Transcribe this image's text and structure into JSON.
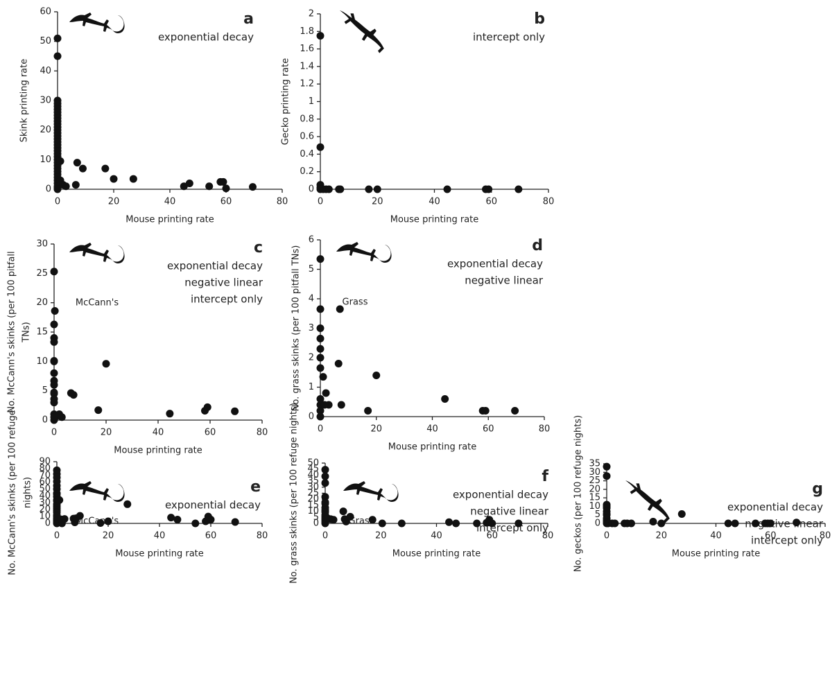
{
  "chart_data": [
    {
      "type": "scatter",
      "panel": "a",
      "annotations": [
        "exponential decay"
      ],
      "xlabel": "Mouse printing rate",
      "ylabel": [
        "Skink printing rate"
      ],
      "xlim": [
        0,
        80
      ],
      "xticks": [
        0,
        20,
        40,
        60,
        80
      ],
      "ylim": [
        0,
        60
      ],
      "yticks": [
        0,
        10,
        20,
        30,
        40,
        50,
        60
      ],
      "color": "#111111",
      "x": [
        0,
        0,
        0,
        0,
        0,
        0,
        0,
        0,
        0,
        0,
        0,
        0,
        0,
        0,
        0,
        0,
        0,
        0,
        0,
        0,
        0,
        0,
        0,
        0,
        0,
        0,
        0,
        0,
        0,
        0,
        0,
        0,
        0,
        0,
        1,
        1,
        2,
        3,
        6.5,
        7,
        9,
        17,
        20,
        27,
        45,
        47,
        54,
        58,
        59,
        60,
        69.5
      ],
      "y": [
        51,
        45,
        30,
        29,
        28,
        27,
        26,
        25,
        24,
        23,
        22,
        21,
        20,
        19,
        18,
        17,
        16,
        15,
        14,
        13,
        12,
        11,
        10,
        9,
        8,
        7,
        6,
        5,
        4,
        3,
        2,
        1,
        0.5,
        0,
        9.5,
        3,
        1.5,
        1,
        1.5,
        9,
        7,
        7,
        3.5,
        3.5,
        1,
        2,
        1,
        2.5,
        2.5,
        0.3,
        0.8
      ]
    },
    {
      "type": "scatter",
      "panel": "b",
      "annotations": [
        "intercept only"
      ],
      "xlabel": "Mouse printing rate",
      "ylabel": [
        "Gecko printing rate"
      ],
      "xlim": [
        0,
        80
      ],
      "xticks": [
        0,
        20,
        40,
        60,
        80
      ],
      "ylim": [
        0,
        2
      ],
      "yticks": [
        0,
        0.2,
        0.4,
        0.6,
        0.8,
        1,
        1.2,
        1.4,
        1.6,
        1.8,
        2
      ],
      "color": "#111111",
      "x": [
        0,
        0,
        0,
        0,
        0,
        1,
        2,
        3,
        6.5,
        7,
        17,
        20,
        44.5,
        58,
        59,
        69.5
      ],
      "y": [
        1.75,
        0.48,
        0.05,
        0.02,
        0,
        0,
        0,
        0,
        0,
        0,
        0,
        0,
        0,
        0,
        0,
        0
      ]
    },
    {
      "type": "scatter",
      "panel": "c",
      "label": "McCann's",
      "annotations": [
        "exponential decay",
        "negative linear",
        "intercept only"
      ],
      "xlabel": "Mouse printing rate",
      "ylabel": [
        "No. McCann's skinks (per 100 pitfall",
        "TNs)"
      ],
      "xlim": [
        0,
        80
      ],
      "xticks": [
        0,
        20,
        40,
        60,
        80
      ],
      "ylim": [
        0,
        30
      ],
      "yticks": [
        0,
        5,
        10,
        15,
        20,
        25,
        30
      ],
      "color": "#111111",
      "x": [
        0,
        0,
        0,
        0,
        0,
        0,
        0,
        0,
        0,
        0,
        0,
        0,
        0,
        0,
        0,
        0,
        0.3,
        1,
        2,
        3,
        6.5,
        7.5,
        17,
        20,
        44.5,
        58,
        59,
        69.5
      ],
      "y": [
        25.3,
        16.3,
        14,
        13.3,
        10.1,
        10,
        8,
        6.7,
        6,
        4.7,
        4.5,
        3.6,
        3,
        1,
        0.5,
        0,
        18.6,
        0.7,
        1,
        0.5,
        4.6,
        4.3,
        1.7,
        9.6,
        1.1,
        1.6,
        2.2,
        1.5
      ]
    },
    {
      "type": "scatter",
      "panel": "d",
      "label": "Grass",
      "annotations": [
        "exponential decay",
        "negative linear"
      ],
      "xlabel": "Mouse printing rate",
      "ylabel": [
        "No. grass skinks (per 100 pitfall TNs)"
      ],
      "xlim": [
        0,
        80
      ],
      "xticks": [
        0,
        20,
        40,
        60,
        80
      ],
      "ylim": [
        0,
        6
      ],
      "yticks": [
        0,
        1,
        2,
        3,
        4,
        5,
        6
      ],
      "color": "#111111",
      "x": [
        0,
        0,
        0,
        0,
        0,
        0,
        0,
        0,
        0,
        0,
        0,
        1,
        2,
        3,
        1.5,
        6.5,
        7,
        7.5,
        17,
        20,
        44.5,
        58,
        59,
        69.5
      ],
      "y": [
        5.35,
        3.65,
        3,
        2.65,
        2.3,
        2,
        1.65,
        0.6,
        0.4,
        0.2,
        0,
        1.35,
        0.8,
        0.4,
        0.4,
        1.8,
        3.65,
        0.4,
        0.2,
        1.4,
        0.6,
        0.2,
        0.2,
        0.2
      ]
    },
    {
      "type": "scatter",
      "panel": "e",
      "label": "McCann's",
      "annotations": [
        "exponential decay"
      ],
      "xlabel": "Mouse printing rate",
      "ylabel": [
        "No. McCann's skinks (per 100 refuge",
        "nights)"
      ],
      "xlim": [
        0,
        80
      ],
      "xticks": [
        0,
        20,
        40,
        60,
        80
      ],
      "ylim": [
        0,
        90
      ],
      "yticks": [
        0,
        10,
        20,
        30,
        40,
        50,
        60,
        70,
        80,
        90
      ],
      "color": "#111111",
      "x": [
        0,
        0,
        0,
        0,
        0,
        0,
        0,
        0,
        0,
        0,
        0,
        0,
        0,
        0,
        0,
        0,
        0,
        0,
        0,
        0,
        0,
        0,
        0,
        0,
        1,
        1.5,
        3,
        2,
        6.5,
        7,
        7.5,
        9,
        17,
        20,
        27.5,
        44.5,
        47,
        54,
        58,
        59,
        60,
        69.5
      ],
      "y": [
        77.5,
        72,
        67,
        61,
        55,
        50,
        44,
        43,
        39,
        34,
        33,
        28,
        25,
        22,
        19,
        16,
        12,
        10,
        7,
        6,
        4,
        3,
        1,
        0,
        34,
        6,
        6.5,
        0,
        7,
        1.5,
        7.5,
        11,
        0.5,
        3,
        28,
        8.5,
        5.5,
        0,
        3,
        10,
        5.5,
        2
      ]
    },
    {
      "type": "scatter",
      "panel": "f",
      "label": "Grass",
      "annotations": [
        "exponential decay",
        "negative linear",
        "intercept only"
      ],
      "xlabel": "Mouse printing rate",
      "ylabel": [
        "No. grass skinks (per 100 refuge nights)"
      ],
      "xlim": [
        0,
        80
      ],
      "xticks": [
        0,
        20,
        40,
        60,
        80
      ],
      "ylim": [
        0,
        50
      ],
      "yticks": [
        0,
        5,
        10,
        15,
        20,
        25,
        30,
        35,
        40,
        45,
        50
      ],
      "color": "#111111",
      "x": [
        0,
        0,
        0,
        0,
        0,
        0,
        0,
        0,
        0,
        0,
        0,
        0,
        0,
        0,
        0,
        0,
        0,
        1,
        2,
        3,
        6.5,
        7,
        7.5,
        9,
        17,
        20.5,
        27.5,
        44.5,
        47,
        54.5,
        58,
        59,
        60,
        69.5
      ],
      "y": [
        44.5,
        39,
        33.5,
        22,
        17.5,
        16.5,
        13,
        11,
        9.5,
        7,
        5.5,
        4.5,
        3.5,
        2.5,
        1.5,
        0.5,
        0,
        4,
        3.5,
        3,
        10,
        3.5,
        1.5,
        5.5,
        3,
        0,
        0,
        1,
        0,
        0,
        0.5,
        3,
        0,
        0
      ]
    },
    {
      "type": "scatter",
      "panel": "g",
      "annotations": [
        "exponential decay",
        "negative linear",
        "intercept only"
      ],
      "xlabel": "Mouse printing rate",
      "ylabel": [
        "No. geckos (per 100 refuge nights)"
      ],
      "xlim": [
        0,
        80
      ],
      "xticks": [
        0,
        20,
        40,
        60,
        80
      ],
      "ylim": [
        0,
        35
      ],
      "yticks": [
        0,
        5,
        10,
        15,
        20,
        25,
        30,
        35
      ],
      "color": "#111111",
      "x": [
        0,
        0,
        0,
        0,
        0,
        0,
        0,
        0,
        0,
        0,
        0,
        0,
        0.5,
        2,
        3,
        6.5,
        7.5,
        9,
        17,
        20,
        27.5,
        44.5,
        47,
        54.5,
        58,
        59,
        60,
        69.5
      ],
      "y": [
        33.3,
        27.8,
        11,
        10,
        9,
        7,
        5.5,
        5,
        3,
        2,
        1,
        0,
        0,
        0,
        0,
        0,
        0,
        0,
        1,
        0,
        5.5,
        0,
        0,
        0,
        0,
        0,
        0,
        0.5
      ]
    }
  ]
}
